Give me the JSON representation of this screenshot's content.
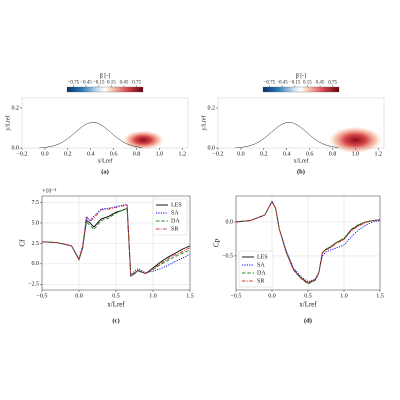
{
  "chart_data": [
    {
      "type": "contour",
      "caption": "(a)",
      "xlabel": "x/Lref",
      "ylabel": "y/Lref",
      "xlim": [
        -0.2,
        1.25
      ],
      "ylim": [
        0,
        0.25
      ],
      "xticks": [
        {
          "value": -0.2,
          "label": "−0.2"
        },
        {
          "value": 0,
          "label": "0.0"
        },
        0.2,
        0.4,
        0.6,
        0.8,
        {
          "value": 1,
          "label": "1.0"
        },
        1.2
      ],
      "yticks": [
        {
          "value": 0,
          "label": "0.0"
        },
        0.2
      ],
      "colorbar": {
        "label": "β [-]",
        "range": [
          -0.9,
          0.9
        ],
        "ticks": [
          {
            "value": -0.75,
            "label": "−0.75"
          },
          {
            "value": -0.45,
            "label": "−0.45"
          },
          {
            "value": -0.15,
            "label": "−0.15"
          },
          0.15,
          0.45,
          0.75
        ]
      }
    },
    {
      "type": "contour",
      "caption": "(b)",
      "xlabel": "x/Lref",
      "ylabel": "y/Lref",
      "xlim": [
        -0.2,
        1.25
      ],
      "ylim": [
        0,
        0.25
      ],
      "xticks": [
        {
          "value": -0.2,
          "label": "−0.2"
        },
        {
          "value": 0,
          "label": "0.0"
        },
        0.2,
        0.4,
        0.6,
        0.8,
        {
          "value": 1,
          "label": "1.0"
        },
        1.2
      ],
      "yticks": [
        {
          "value": 0,
          "label": "0.0"
        },
        0.2
      ],
      "colorbar": {
        "label": "β [-]",
        "range": [
          -0.9,
          0.9
        ],
        "ticks": [
          {
            "value": -0.75,
            "label": "−0.75"
          },
          {
            "value": -0.45,
            "label": "−0.45"
          },
          {
            "value": -0.15,
            "label": "−0.15"
          },
          0.15,
          0.45,
          0.75
        ]
      }
    },
    {
      "type": "line",
      "caption": "(c)",
      "xlabel": "x/Lref",
      "ylabel": "Cf",
      "y_offset_label": "×10⁻³",
      "xlim": [
        -0.5,
        1.5
      ],
      "ylim": [
        -3.2,
        8.3
      ],
      "grid": true,
      "legend": "upper right",
      "xticks": [
        {
          "value": -0.5,
          "label": "−0.5"
        },
        {
          "value": 0,
          "label": "0.0"
        },
        0.5,
        {
          "value": 1,
          "label": "1.0"
        },
        1.5
      ],
      "yticks": [
        {
          "value": -2.5,
          "label": "−2.5"
        },
        {
          "value": 0,
          "label": "0.0"
        },
        2.5,
        {
          "value": 5,
          "label": "5.0"
        },
        7.5
      ],
      "x": [
        -0.5,
        -0.3,
        -0.1,
        0,
        0.05,
        0.1,
        0.15,
        0.2,
        0.3,
        0.4,
        0.5,
        0.6,
        0.65,
        0.7,
        0.75,
        0.8,
        0.9,
        1.0,
        1.1,
        1.2,
        1.3,
        1.4,
        1.5
      ],
      "series": [
        {
          "name": "LES",
          "color": "#000000",
          "style": "solid",
          "values": [
            2.7,
            2.6,
            2.2,
            0.5,
            2.0,
            5.3,
            5.0,
            4.5,
            5.5,
            5.8,
            6.3,
            6.6,
            6.8,
            -1.5,
            -1.2,
            -0.8,
            -1.2,
            -0.5,
            0.2,
            0.8,
            1.3,
            1.8,
            2.2
          ]
        },
        {
          "name": "SA",
          "color": "#0000ff",
          "style": "dotted",
          "values": [
            2.7,
            2.6,
            2.2,
            0.6,
            2.2,
            5.8,
            5.3,
            5.8,
            6.7,
            6.8,
            7.0,
            7.2,
            7.3,
            -1.4,
            -0.9,
            -0.6,
            -1.1,
            -0.9,
            -0.6,
            -0.2,
            0.3,
            0.7,
            1.2
          ]
        },
        {
          "name": "DA",
          "color": "#228b22",
          "style": "dashed",
          "values": [
            2.7,
            2.6,
            2.2,
            0.5,
            2.0,
            5.1,
            4.7,
            4.2,
            5.3,
            5.6,
            6.2,
            6.6,
            6.8,
            -1.5,
            -1.1,
            -0.9,
            -1.2,
            -0.7,
            -0.1,
            0.4,
            0.9,
            1.3,
            1.7
          ]
        },
        {
          "name": "SR",
          "color": "#e03030",
          "style": "dashdot",
          "values": [
            2.7,
            2.6,
            2.2,
            0.6,
            2.2,
            5.6,
            5.2,
            5.6,
            6.6,
            6.7,
            6.9,
            7.1,
            7.2,
            -1.5,
            -1.1,
            -0.8,
            -1.2,
            -0.6,
            0.0,
            0.6,
            1.1,
            1.5,
            2.0
          ]
        }
      ]
    },
    {
      "type": "line",
      "caption": "(d)",
      "xlabel": "x/Lref",
      "ylabel": "Cp",
      "xlim": [
        -0.5,
        1.5
      ],
      "ylim": [
        -1.0,
        0.38
      ],
      "grid": true,
      "legend": "lower left",
      "xticks": [
        {
          "value": -0.5,
          "label": "−0.5"
        },
        {
          "value": 0,
          "label": "0.0"
        },
        0.5,
        {
          "value": 1,
          "label": "1.0"
        },
        1.5
      ],
      "yticks": [
        {
          "value": -0.5,
          "label": "−0.5"
        },
        {
          "value": 0,
          "label": "0.0"
        }
      ],
      "x": [
        -0.5,
        -0.3,
        -0.1,
        0,
        0.05,
        0.1,
        0.2,
        0.3,
        0.4,
        0.5,
        0.6,
        0.65,
        0.7,
        0.75,
        0.8,
        0.9,
        1.0,
        1.1,
        1.2,
        1.3,
        1.4,
        1.5
      ],
      "series": [
        {
          "name": "LES",
          "color": "#000000",
          "style": "solid",
          "values": [
            0.0,
            0.02,
            0.1,
            0.3,
            0.2,
            -0.1,
            -0.45,
            -0.7,
            -0.82,
            -0.9,
            -0.85,
            -0.75,
            -0.45,
            -0.4,
            -0.38,
            -0.3,
            -0.25,
            -0.12,
            -0.05,
            0.0,
            0.02,
            0.03
          ]
        },
        {
          "name": "SA",
          "color": "#0000ff",
          "style": "dotted",
          "values": [
            0.0,
            0.02,
            0.1,
            0.3,
            0.2,
            -0.1,
            -0.43,
            -0.68,
            -0.8,
            -0.88,
            -0.84,
            -0.74,
            -0.5,
            -0.44,
            -0.42,
            -0.38,
            -0.34,
            -0.22,
            -0.12,
            -0.05,
            0.0,
            0.02
          ]
        },
        {
          "name": "DA",
          "color": "#228b22",
          "style": "dashed",
          "values": [
            0.0,
            0.02,
            0.1,
            0.3,
            0.2,
            -0.1,
            -0.46,
            -0.71,
            -0.83,
            -0.91,
            -0.86,
            -0.76,
            -0.45,
            -0.4,
            -0.37,
            -0.3,
            -0.24,
            -0.11,
            -0.04,
            0.0,
            0.02,
            0.03
          ]
        },
        {
          "name": "SR",
          "color": "#e03030",
          "style": "dashdot",
          "values": [
            0.0,
            0.02,
            0.1,
            0.3,
            0.2,
            -0.1,
            -0.45,
            -0.7,
            -0.82,
            -0.9,
            -0.85,
            -0.75,
            -0.46,
            -0.41,
            -0.39,
            -0.31,
            -0.26,
            -0.13,
            -0.06,
            -0.01,
            0.02,
            0.03
          ]
        }
      ]
    }
  ]
}
